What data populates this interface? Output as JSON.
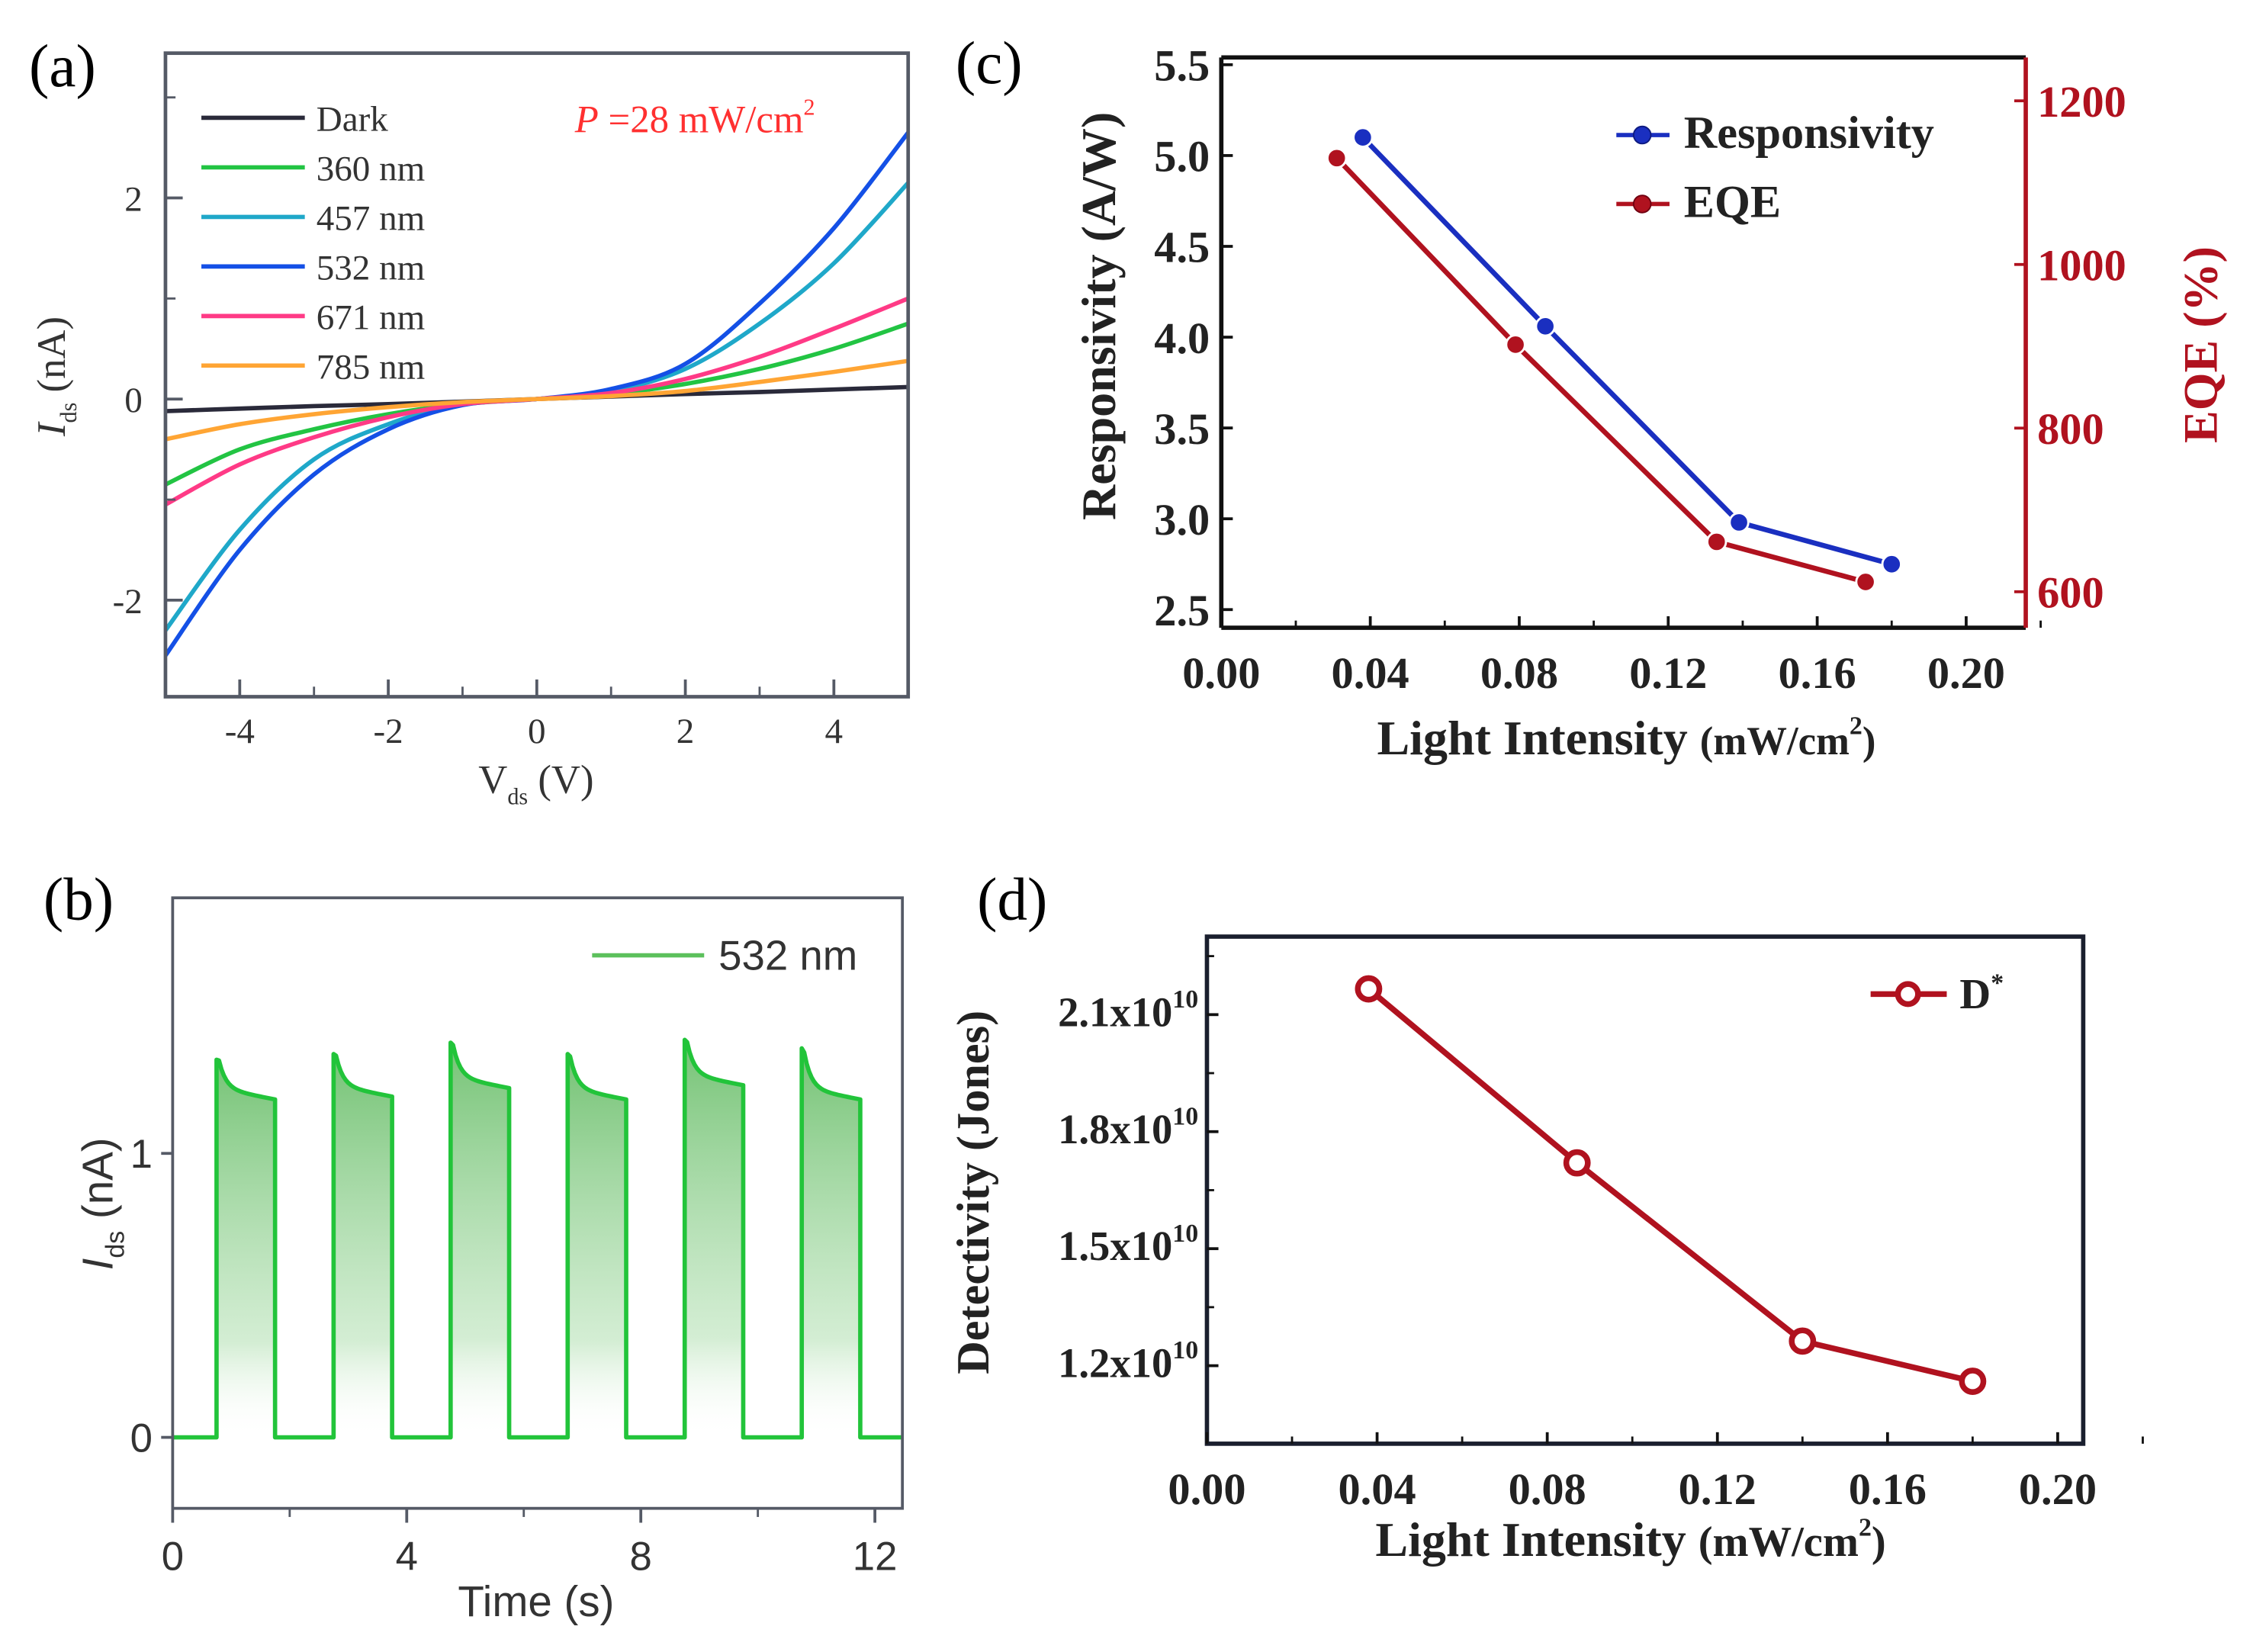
{
  "panels": {
    "a": {
      "label": "(a)"
    },
    "b": {
      "label": "(b)"
    },
    "c": {
      "label": "(c)"
    },
    "d": {
      "label": "(d)"
    }
  },
  "colors": {
    "dark": "#2a2a3a",
    "nm360": "#22c443",
    "nm457": "#1fa8c9",
    "nm532": "#1450e6",
    "nm671": "#ff3a86",
    "nm785": "#ffa534",
    "pulse": "#22c43a",
    "responsivity": "#1a2fc0",
    "eqe": "#b0121f",
    "annotation": "#ff3030",
    "axis": "#555a66"
  },
  "chart_data": [
    {
      "id": "a",
      "type": "line",
      "xlabel": "V",
      "xlabel_sub": "ds",
      "xlabel_unit": " (V)",
      "ylabel": "I",
      "ylabel_sub": "ds",
      "ylabel_unit": " (nA)",
      "xlim": [
        -5,
        5
      ],
      "ylim": [
        -2.96,
        3.44
      ],
      "xticks": [
        -4,
        -2,
        0,
        2,
        4
      ],
      "xminor": [
        -5,
        -3,
        -1,
        1,
        3,
        5
      ],
      "yticks": [
        -2,
        0,
        2
      ],
      "yminor": [
        -1,
        1,
        3
      ],
      "annotation": {
        "italic": "P",
        "text": " =28 mW/cm",
        "sup": "2"
      },
      "legend_position": "top-left",
      "x": [
        -5,
        -4,
        -3,
        -2,
        -1,
        0,
        1,
        2,
        3,
        4,
        5
      ],
      "series": [
        {
          "name": "Dark",
          "color_key": "dark",
          "values": [
            -0.12,
            -0.095,
            -0.07,
            -0.05,
            -0.025,
            0,
            0.025,
            0.05,
            0.07,
            0.095,
            0.12
          ]
        },
        {
          "name": "360 nm",
          "color_key": "nm360",
          "values": [
            -0.85,
            -0.5,
            -0.3,
            -0.15,
            -0.05,
            0,
            0.05,
            0.15,
            0.3,
            0.5,
            0.75
          ]
        },
        {
          "name": "457 nm",
          "color_key": "nm457",
          "values": [
            -2.3,
            -1.3,
            -0.6,
            -0.25,
            -0.05,
            0,
            0.08,
            0.3,
            0.75,
            1.35,
            2.15
          ]
        },
        {
          "name": "532 nm",
          "color_key": "nm532",
          "values": [
            -2.55,
            -1.5,
            -0.75,
            -0.3,
            -0.06,
            0,
            0.1,
            0.35,
            0.95,
            1.7,
            2.65
          ]
        },
        {
          "name": "671 nm",
          "color_key": "nm671",
          "values": [
            -1.05,
            -0.65,
            -0.38,
            -0.18,
            -0.05,
            0,
            0.06,
            0.2,
            0.42,
            0.7,
            1.0
          ]
        },
        {
          "name": "785 nm",
          "color_key": "nm785",
          "values": [
            -0.4,
            -0.25,
            -0.15,
            -0.08,
            -0.03,
            0,
            0.03,
            0.08,
            0.17,
            0.27,
            0.38
          ]
        }
      ]
    },
    {
      "id": "b",
      "type": "area",
      "xlabel": "Time (s)",
      "ylabel": "I",
      "ylabel_sub": "ds",
      "ylabel_unit": " (nA)",
      "xlim": [
        0,
        12.47
      ],
      "ylim": [
        -0.25,
        1.9
      ],
      "xticks": [
        0,
        4,
        8,
        12
      ],
      "xminor": [
        2,
        6,
        10
      ],
      "yticks": [
        0,
        1
      ],
      "legend": "532 nm",
      "legend_position": "top-right",
      "pulses": [
        {
          "on": 0.75,
          "off": 1.75,
          "peak": 1.33,
          "plateau": 1.19
        },
        {
          "on": 2.75,
          "off": 3.75,
          "peak": 1.35,
          "plateau": 1.2
        },
        {
          "on": 4.75,
          "off": 5.75,
          "peak": 1.39,
          "plateau": 1.23
        },
        {
          "on": 6.75,
          "off": 7.75,
          "peak": 1.35,
          "plateau": 1.19
        },
        {
          "on": 8.75,
          "off": 9.75,
          "peak": 1.4,
          "plateau": 1.24
        },
        {
          "on": 10.75,
          "off": 11.75,
          "peak": 1.37,
          "plateau": 1.19
        }
      ]
    },
    {
      "id": "c",
      "type": "line",
      "xlabel": "Light Intensity ",
      "xlabel_unit": "(mW/cm",
      "xlabel_sup": "2",
      "xlabel_close": ")",
      "ylabel": "Responsivity (A/W)",
      "ylabel_right": "EQE (%)",
      "xlim": [
        0,
        0.216
      ],
      "ylim": [
        2.4,
        5.54
      ],
      "ylim_right": [
        556,
        1253
      ],
      "xticks": [
        "0.00",
        "0.04",
        "0.08",
        "0.12",
        "0.16",
        "0.20"
      ],
      "yticks": [
        "2.5",
        "3.0",
        "3.5",
        "4.0",
        "4.5",
        "5.0",
        "5.5"
      ],
      "yticks_right": [
        "600",
        "800",
        "1000",
        "1200"
      ],
      "legend_position": "top-right",
      "series": [
        {
          "name": "Responsivity",
          "axis": "left",
          "color_key": "responsivity",
          "x": [
            0.038,
            0.087,
            0.139,
            0.18
          ],
          "values": [
            5.1,
            4.06,
            2.98,
            2.75
          ]
        },
        {
          "name": "EQE",
          "axis": "right",
          "color_key": "eqe",
          "x": [
            0.031,
            0.079,
            0.133,
            0.173
          ],
          "values": [
            1130,
            902,
            661,
            612
          ]
        }
      ]
    },
    {
      "id": "d",
      "type": "line",
      "xlabel": "Light Intensity ",
      "xlabel_unit": "(mW/cm",
      "xlabel_sup": "2",
      "xlabel_close": ")",
      "ylabel": "Detectivity (Jones)",
      "xlim": [
        0,
        0.206
      ],
      "ylim": [
        1.0,
        2.3
      ],
      "y_scale_exponent": 10,
      "xticks": [
        "0.00",
        "0.04",
        "0.08",
        "0.12",
        "0.16",
        "0.20"
      ],
      "yticks": [
        {
          "value": 1.2,
          "mantissa": "1.2x10",
          "exp": "10"
        },
        {
          "value": 1.5,
          "mantissa": "1.5x10",
          "exp": "10"
        },
        {
          "value": 1.8,
          "mantissa": "1.8x10",
          "exp": "10"
        },
        {
          "value": 2.1,
          "mantissa": "2.1x10",
          "exp": "10"
        }
      ],
      "legend_position": "top-right",
      "series": [
        {
          "name": "D",
          "name_sup": "*",
          "color_key": "eqe",
          "x": [
            0.038,
            0.087,
            0.14,
            0.18
          ],
          "values": [
            2.166,
            1.72,
            1.263,
            1.16
          ]
        }
      ]
    }
  ]
}
